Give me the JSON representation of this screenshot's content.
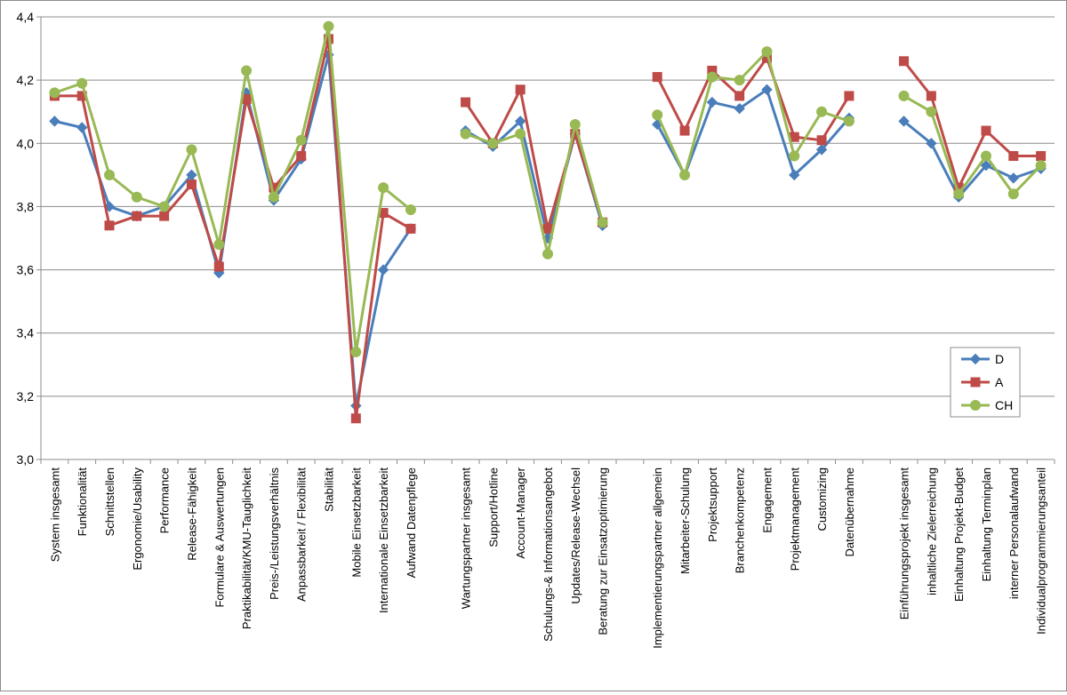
{
  "chart_data": {
    "type": "line",
    "ylim": [
      3.0,
      4.4
    ],
    "yticks": [
      3.0,
      3.2,
      3.4,
      3.6,
      3.8,
      4.0,
      4.2,
      4.4
    ],
    "ytick_labels": [
      "3,0",
      "3,2",
      "3,4",
      "3,6",
      "3,8",
      "4,0",
      "4,2",
      "4,4"
    ],
    "grid": "horizontal",
    "legend_position": "right",
    "categories": [
      "System insgesamt",
      "Funktionalität",
      "Schnittstellen",
      "Ergonomie/Usability",
      "Performance",
      "Release-Fähigkeit",
      "Formulare & Auswertungen",
      "Praktikabilität/KMU-Tauglichkeit",
      "Preis-/Leistungsverhältnis",
      "Anpassbarkeit / Flexibilität",
      "Stabilität",
      "Mobile Einsetzbarkeit",
      "Internationale Einsetzbarkeit",
      "Aufwand Datenpflege",
      "",
      "Wartungspartner insgesamt",
      "Support/Hotline",
      "Account-Manager",
      "Schulungs-& Informationsangebot",
      "Updates/Release-Wechsel",
      "Beratung zur Einsatzoptimierung",
      "",
      "Implementierungspartner allgemein",
      "Mitarbeiter-Schulung",
      "Projektsupport",
      "Branchenkompetenz",
      "Engagement",
      "Projektmanagement",
      "Customizing",
      "Datenübernahme",
      "",
      "Einführungsprojekt insgesamt",
      "inhaltliche Zielerreichung",
      "Einhaltung Projekt-Budget",
      "Einhaltung Terminplan",
      "interner Personalaufwand",
      "Individualprogrammierungsanteil"
    ],
    "series": [
      {
        "name": "D",
        "color": "#4a7ebb",
        "marker": "diamond",
        "values": [
          4.07,
          4.05,
          3.8,
          3.77,
          3.8,
          3.9,
          3.59,
          4.16,
          3.82,
          3.95,
          4.28,
          3.17,
          3.6,
          3.73,
          null,
          4.04,
          3.99,
          4.07,
          3.7,
          4.03,
          3.74,
          null,
          4.06,
          3.9,
          4.13,
          4.11,
          4.17,
          3.9,
          3.98,
          4.08,
          null,
          4.07,
          4.0,
          3.83,
          3.93,
          3.89,
          3.92
        ]
      },
      {
        "name": "A",
        "color": "#be4b48",
        "marker": "square",
        "values": [
          4.15,
          4.15,
          3.74,
          3.77,
          3.77,
          3.87,
          3.61,
          4.14,
          3.86,
          3.96,
          4.33,
          3.13,
          3.78,
          3.73,
          null,
          4.13,
          4.0,
          4.17,
          3.73,
          4.03,
          3.75,
          null,
          4.21,
          4.04,
          4.23,
          4.15,
          4.27,
          4.02,
          4.01,
          4.15,
          null,
          4.26,
          4.15,
          3.86,
          4.04,
          3.96,
          3.96
        ]
      },
      {
        "name": "CH",
        "color": "#98b954",
        "marker": "circle",
        "values": [
          4.16,
          4.19,
          3.9,
          3.83,
          3.8,
          3.98,
          3.68,
          4.23,
          3.83,
          4.01,
          4.37,
          3.34,
          3.86,
          3.79,
          null,
          4.03,
          4.0,
          4.03,
          3.65,
          4.06,
          3.75,
          null,
          4.09,
          3.9,
          4.21,
          4.2,
          4.29,
          3.96,
          4.1,
          4.07,
          null,
          4.15,
          4.1,
          3.84,
          3.96,
          3.84,
          3.93
        ]
      }
    ]
  }
}
